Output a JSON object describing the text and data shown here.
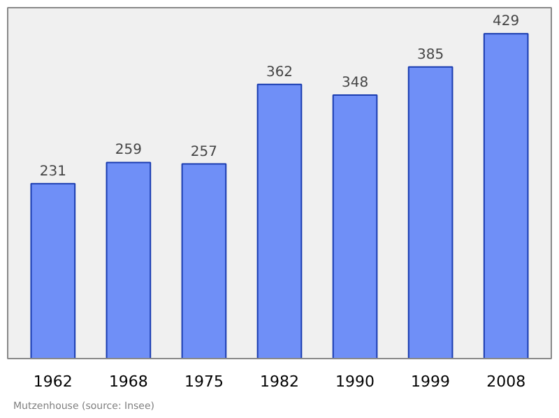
{
  "chart_data": {
    "type": "bar",
    "categories": [
      "1962",
      "1968",
      "1975",
      "1982",
      "1990",
      "1999",
      "2008"
    ],
    "values": [
      231,
      259,
      257,
      362,
      348,
      385,
      429
    ],
    "color": "#6f8ff7",
    "data_labels": true,
    "grid": false,
    "annotations": [
      "Mutzenhouse    (source: Insee)"
    ]
  }
}
